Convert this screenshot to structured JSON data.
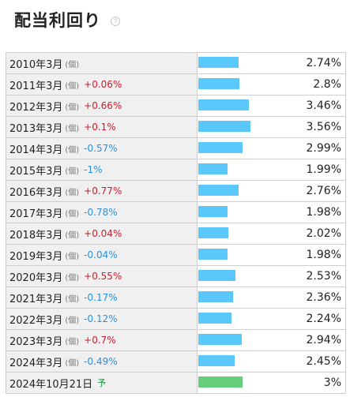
{
  "header": {
    "title": "配当利回り",
    "help_icon": "?"
  },
  "chart_data": {
    "type": "bar",
    "unit_label": "(個)",
    "forecast_label": "予",
    "colors": {
      "actual": "#5bc8fb",
      "forecast": "#66cf7c",
      "up": "#d01c2d",
      "down": "#2b8fdc"
    },
    "rows": [
      {
        "period": "2010年3月",
        "change": "",
        "value": 2.74,
        "value_label": "2.74%"
      },
      {
        "period": "2011年3月",
        "change": "+0.06%",
        "value": 2.8,
        "value_label": "2.8%"
      },
      {
        "period": "2012年3月",
        "change": "+0.66%",
        "value": 3.46,
        "value_label": "3.46%"
      },
      {
        "period": "2013年3月",
        "change": "+0.1%",
        "value": 3.56,
        "value_label": "3.56%"
      },
      {
        "period": "2014年3月",
        "change": "-0.57%",
        "value": 2.99,
        "value_label": "2.99%"
      },
      {
        "period": "2015年3月",
        "change": "-1%",
        "value": 1.99,
        "value_label": "1.99%"
      },
      {
        "period": "2016年3月",
        "change": "+0.77%",
        "value": 2.76,
        "value_label": "2.76%"
      },
      {
        "period": "2017年3月",
        "change": "-0.78%",
        "value": 1.98,
        "value_label": "1.98%"
      },
      {
        "period": "2018年3月",
        "change": "+0.04%",
        "value": 2.02,
        "value_label": "2.02%"
      },
      {
        "period": "2019年3月",
        "change": "-0.04%",
        "value": 1.98,
        "value_label": "1.98%"
      },
      {
        "period": "2020年3月",
        "change": "+0.55%",
        "value": 2.53,
        "value_label": "2.53%"
      },
      {
        "period": "2021年3月",
        "change": "-0.17%",
        "value": 2.36,
        "value_label": "2.36%"
      },
      {
        "period": "2022年3月",
        "change": "-0.12%",
        "value": 2.24,
        "value_label": "2.24%"
      },
      {
        "period": "2023年3月",
        "change": "+0.7%",
        "value": 2.94,
        "value_label": "2.94%"
      },
      {
        "period": "2024年3月",
        "change": "-0.49%",
        "value": 2.45,
        "value_label": "2.45%"
      },
      {
        "period": "2024年10月21日",
        "change": "",
        "value": 3.0,
        "value_label": "3%",
        "forecast": true
      }
    ]
  }
}
